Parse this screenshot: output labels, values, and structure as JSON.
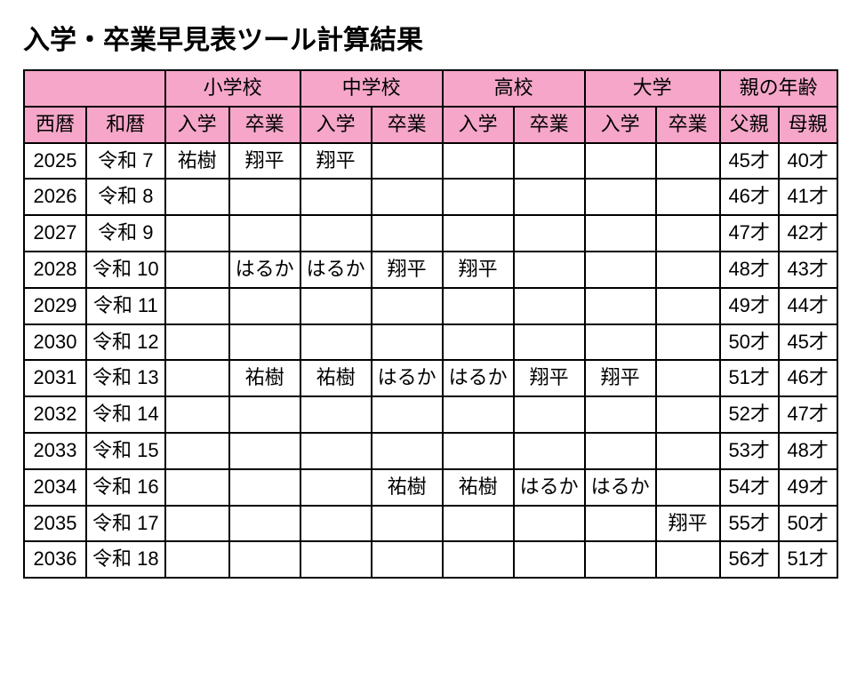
{
  "title": "入学・卒業早見表ツール計算結果",
  "header_groups": {
    "blank": "",
    "elementary": "小学校",
    "junior": "中学校",
    "high": "高校",
    "university": "大学",
    "parent_age": "親の年齢"
  },
  "header_cols": {
    "seireki": "西暦",
    "wareki": "和暦",
    "enter": "入学",
    "graduate": "卒業",
    "father": "父親",
    "mother": "母親"
  },
  "rows": [
    {
      "seireki": "2025",
      "wareki": "令和 7",
      "el_in": "祐樹",
      "el_out": "翔平",
      "jh_in": "翔平",
      "jh_out": "",
      "hs_in": "",
      "hs_out": "",
      "u_in": "",
      "u_out": "",
      "father": "45才",
      "mother": "40才"
    },
    {
      "seireki": "2026",
      "wareki": "令和 8",
      "el_in": "",
      "el_out": "",
      "jh_in": "",
      "jh_out": "",
      "hs_in": "",
      "hs_out": "",
      "u_in": "",
      "u_out": "",
      "father": "46才",
      "mother": "41才"
    },
    {
      "seireki": "2027",
      "wareki": "令和 9",
      "el_in": "",
      "el_out": "",
      "jh_in": "",
      "jh_out": "",
      "hs_in": "",
      "hs_out": "",
      "u_in": "",
      "u_out": "",
      "father": "47才",
      "mother": "42才"
    },
    {
      "seireki": "2028",
      "wareki": "令和 10",
      "el_in": "",
      "el_out": "はるか",
      "jh_in": "はるか",
      "jh_out": "翔平",
      "hs_in": "翔平",
      "hs_out": "",
      "u_in": "",
      "u_out": "",
      "father": "48才",
      "mother": "43才"
    },
    {
      "seireki": "2029",
      "wareki": "令和 11",
      "el_in": "",
      "el_out": "",
      "jh_in": "",
      "jh_out": "",
      "hs_in": "",
      "hs_out": "",
      "u_in": "",
      "u_out": "",
      "father": "49才",
      "mother": "44才"
    },
    {
      "seireki": "2030",
      "wareki": "令和 12",
      "el_in": "",
      "el_out": "",
      "jh_in": "",
      "jh_out": "",
      "hs_in": "",
      "hs_out": "",
      "u_in": "",
      "u_out": "",
      "father": "50才",
      "mother": "45才"
    },
    {
      "seireki": "2031",
      "wareki": "令和 13",
      "el_in": "",
      "el_out": "祐樹",
      "jh_in": "祐樹",
      "jh_out": "はるか",
      "hs_in": "はるか",
      "hs_out": "翔平",
      "u_in": "翔平",
      "u_out": "",
      "father": "51才",
      "mother": "46才"
    },
    {
      "seireki": "2032",
      "wareki": "令和 14",
      "el_in": "",
      "el_out": "",
      "jh_in": "",
      "jh_out": "",
      "hs_in": "",
      "hs_out": "",
      "u_in": "",
      "u_out": "",
      "father": "52才",
      "mother": "47才"
    },
    {
      "seireki": "2033",
      "wareki": "令和 15",
      "el_in": "",
      "el_out": "",
      "jh_in": "",
      "jh_out": "",
      "hs_in": "",
      "hs_out": "",
      "u_in": "",
      "u_out": "",
      "father": "53才",
      "mother": "48才"
    },
    {
      "seireki": "2034",
      "wareki": "令和 16",
      "el_in": "",
      "el_out": "",
      "jh_in": "",
      "jh_out": "祐樹",
      "hs_in": "祐樹",
      "hs_out": "はるか",
      "u_in": "はるか",
      "u_out": "",
      "father": "54才",
      "mother": "49才"
    },
    {
      "seireki": "2035",
      "wareki": "令和 17",
      "el_in": "",
      "el_out": "",
      "jh_in": "",
      "jh_out": "",
      "hs_in": "",
      "hs_out": "",
      "u_in": "",
      "u_out": "翔平",
      "father": "55才",
      "mother": "50才"
    },
    {
      "seireki": "2036",
      "wareki": "令和 18",
      "el_in": "",
      "el_out": "",
      "jh_in": "",
      "jh_out": "",
      "hs_in": "",
      "hs_out": "",
      "u_in": "",
      "u_out": "",
      "father": "56才",
      "mother": "51才"
    }
  ],
  "style": {
    "header_bg": "#f5a6c9",
    "border_color": "#000000",
    "font_size_title": 30,
    "font_size_cell": 22
  }
}
